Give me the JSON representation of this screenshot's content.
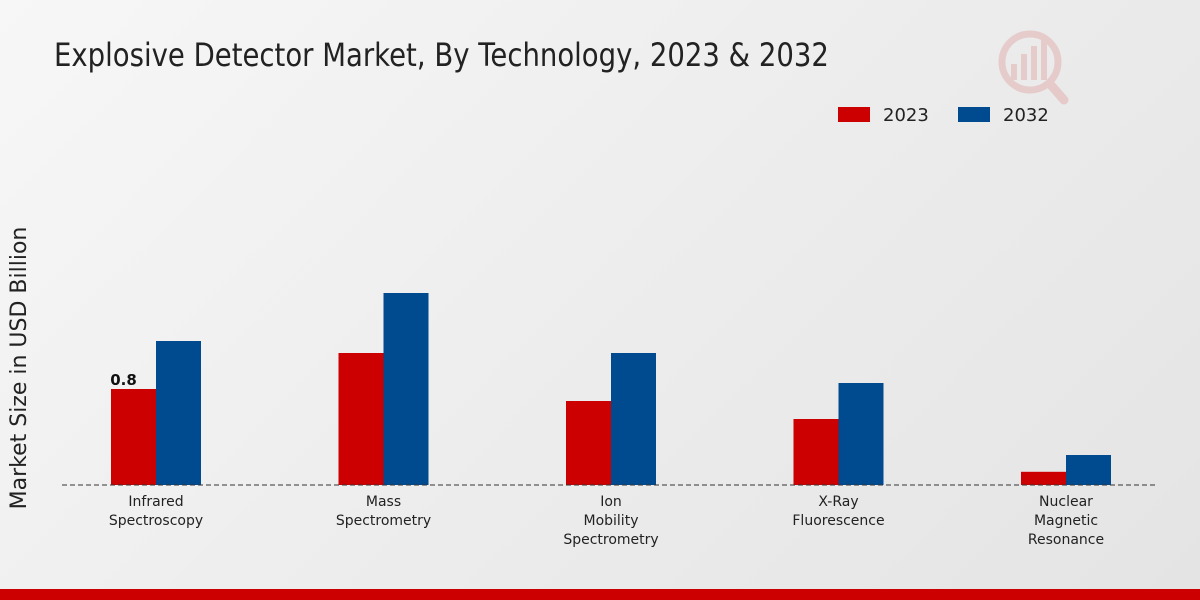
{
  "chart_data": {
    "type": "bar",
    "title": "Explosive Detector Market, By Technology, 2023 & 2032",
    "xlabel": "",
    "ylabel": "Market Size in USD Billion",
    "categories": [
      [
        "Infrared",
        "Spectroscopy"
      ],
      [
        "Mass",
        "Spectrometry"
      ],
      [
        "Ion",
        "Mobility",
        "Spectrometry"
      ],
      [
        "X-Ray",
        "Fluorescence"
      ],
      [
        "Nuclear",
        "Magnetic",
        "Resonance"
      ]
    ],
    "series": [
      {
        "name": "2023",
        "color": "#cc0000",
        "values": [
          0.8,
          1.1,
          0.7,
          0.55,
          0.11
        ]
      },
      {
        "name": "2032",
        "color": "#004a8f",
        "values": [
          1.2,
          1.6,
          1.1,
          0.85,
          0.25
        ]
      }
    ],
    "data_labels": [
      {
        "series": 0,
        "index": 0,
        "text": "0.8"
      }
    ],
    "ylim": [
      0,
      2.5
    ],
    "grid": false,
    "legend_position": "top-right"
  },
  "theme": {
    "accent_bar_color": "#cc0000",
    "watermark_color": "#cc0000"
  }
}
